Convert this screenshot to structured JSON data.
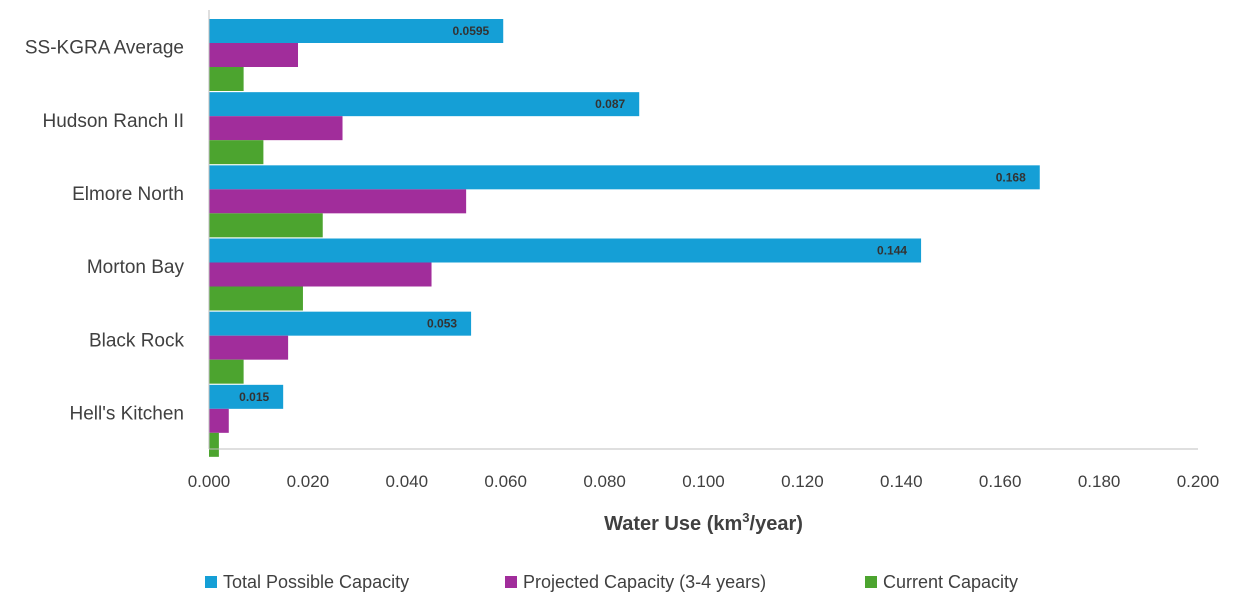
{
  "chart_data": {
    "type": "bar",
    "orientation": "horizontal",
    "categories": [
      "SS-KGRA Average",
      "Hudson Ranch II",
      "Elmore North",
      "Morton Bay",
      "Black Rock",
      "Hell's Kitchen"
    ],
    "series": [
      {
        "name": "Total Possible Capacity",
        "color": "#159fd6",
        "values": [
          0.0595,
          0.087,
          0.168,
          0.144,
          0.053,
          0.015
        ]
      },
      {
        "name": "Projected Capacity (3-4 years)",
        "color": "#a12d9b",
        "values": [
          0.018,
          0.027,
          0.052,
          0.045,
          0.016,
          0.004
        ]
      },
      {
        "name": "Current Capacity",
        "color": "#4ca42f",
        "values": [
          0.007,
          0.011,
          0.023,
          0.019,
          0.007,
          0.002
        ]
      }
    ],
    "data_labels": [
      "0.0595",
      "0.087",
      "0.168",
      "0.144",
      "0.053",
      "0.015"
    ],
    "xlabel_main": "Water Use (km",
    "xlabel_sup": "3",
    "xlabel_end": "/year)",
    "xlim": [
      0,
      0.2
    ],
    "xticks": [
      0,
      0.02,
      0.04,
      0.06,
      0.08,
      0.1,
      0.12,
      0.14,
      0.16,
      0.18,
      0.2
    ],
    "xtick_labels": [
      "0.000",
      "0.020",
      "0.040",
      "0.060",
      "0.080",
      "0.100",
      "0.120",
      "0.140",
      "0.160",
      "0.180",
      "0.200"
    ],
    "legend_position": "bottom",
    "grid": false
  }
}
